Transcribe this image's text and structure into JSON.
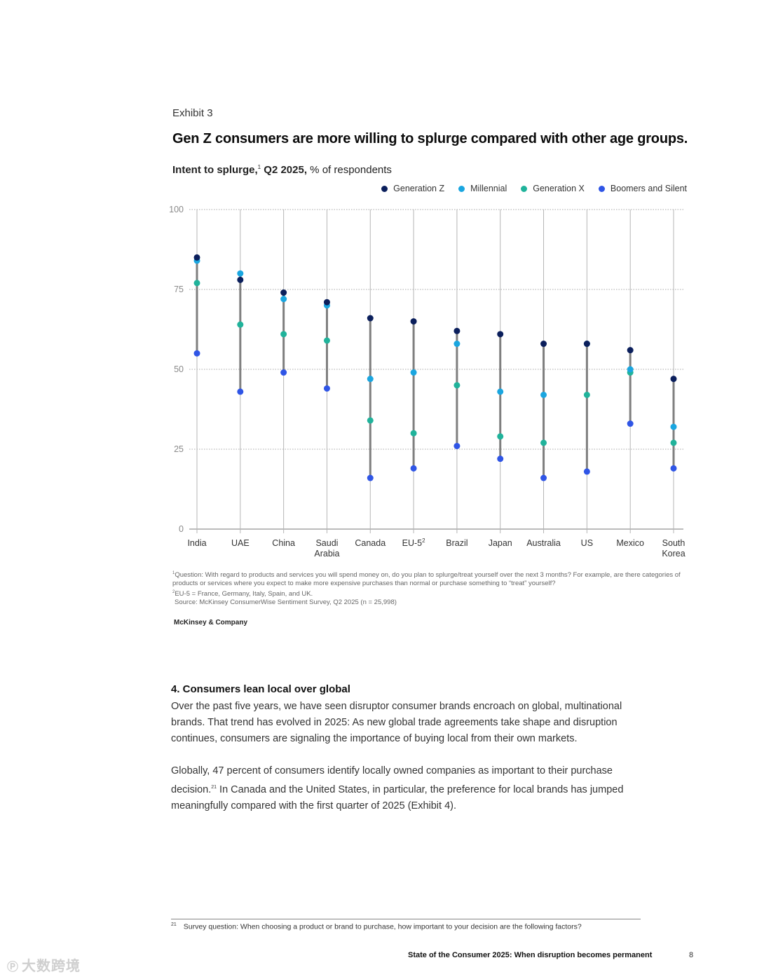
{
  "exhibit": {
    "label": "Exhibit 3",
    "title": "Gen Z consumers are more willing to splurge compared with other age groups."
  },
  "chart_subtitle": {
    "bold": "Intent to splurge,",
    "sup": "1",
    "bold2": " Q2 2025,",
    "rest": " % of respondents"
  },
  "chart_data": {
    "type": "scatter",
    "ylim": [
      0,
      100
    ],
    "yticks": [
      0,
      25,
      50,
      75,
      100
    ],
    "grid": true,
    "legend_position": "top-right",
    "categories": [
      {
        "label": "India",
        "lines": [
          "India"
        ]
      },
      {
        "label": "UAE",
        "lines": [
          "UAE"
        ]
      },
      {
        "label": "China",
        "lines": [
          "China"
        ]
      },
      {
        "label": "Saudi Arabia",
        "lines": [
          "Saudi",
          "Arabia"
        ]
      },
      {
        "label": "Canada",
        "lines": [
          "Canada"
        ]
      },
      {
        "label": "EU-5",
        "lines": [
          "EU-5"
        ],
        "sup": "2"
      },
      {
        "label": "Brazil",
        "lines": [
          "Brazil"
        ]
      },
      {
        "label": "Japan",
        "lines": [
          "Japan"
        ]
      },
      {
        "label": "Australia",
        "lines": [
          "Australia"
        ]
      },
      {
        "label": "US",
        "lines": [
          "US"
        ]
      },
      {
        "label": "Mexico",
        "lines": [
          "Mexico"
        ]
      },
      {
        "label": "South Korea",
        "lines": [
          "South",
          "Korea"
        ]
      }
    ],
    "series": [
      {
        "name": "Generation Z",
        "color": "#0b1f5c",
        "values": [
          85,
          78,
          74,
          71,
          66,
          65,
          62,
          61,
          58,
          58,
          56,
          47
        ]
      },
      {
        "name": "Millennial",
        "color": "#1aa6e0",
        "values": [
          84,
          80,
          72,
          70,
          47,
          49,
          58,
          43,
          42,
          58,
          50,
          32
        ]
      },
      {
        "name": "Generation X",
        "color": "#20b39b",
        "values": [
          77,
          64,
          61,
          59,
          34,
          30,
          45,
          29,
          27,
          42,
          49,
          27
        ]
      },
      {
        "name": "Boomers and Silent",
        "color": "#2f55e6",
        "values": [
          55,
          43,
          49,
          44,
          16,
          19,
          26,
          22,
          16,
          18,
          33,
          19
        ]
      }
    ]
  },
  "footnotes": [
    {
      "sup": "1",
      "text": "Question: With regard to products and services you will spend money on, do you plan to splurge/treat yourself over the next 3 months? For example, are there categories of products or services where you expect to make more expensive purchases than normal or purchase something to “treat” yourself?"
    },
    {
      "sup": "2",
      "text": "EU-5 = France, Germany, Italy, Spain, and UK."
    },
    {
      "sup": "",
      "text": "Source: McKinsey ConsumerWise Sentiment Survey, Q2 2025 (n = 25,998)"
    }
  ],
  "company": "McKinsey & Company",
  "section": {
    "heading": "4. Consumers lean local over global",
    "p1": "Over the past five years, we have seen disruptor consumer brands encroach on global, multinational brands. That trend has evolved in 2025: As new global trade agreements take shape and disruption continues, consumers are signaling the importance of buying local from their own markets.",
    "p2_a": "Globally, 47 percent of consumers identify locally owned companies as important to their purchase decision.",
    "p2_sup": "21",
    "p2_b": " In Canada and the United States, in particular, the preference for local brands has jumped meaningfully compared with the first quarter of 2025 (Exhibit 4)."
  },
  "page_footnote": {
    "sup": "21",
    "text": "Survey question: When choosing a product or brand to purchase, how important to your decision are the following factors?"
  },
  "footer": {
    "running_title": "State of the Consumer 2025: When disruption becomes permanent",
    "page_number": "8"
  },
  "watermark": {
    "icon": "Ⓟ",
    "text": "大数跨境"
  }
}
